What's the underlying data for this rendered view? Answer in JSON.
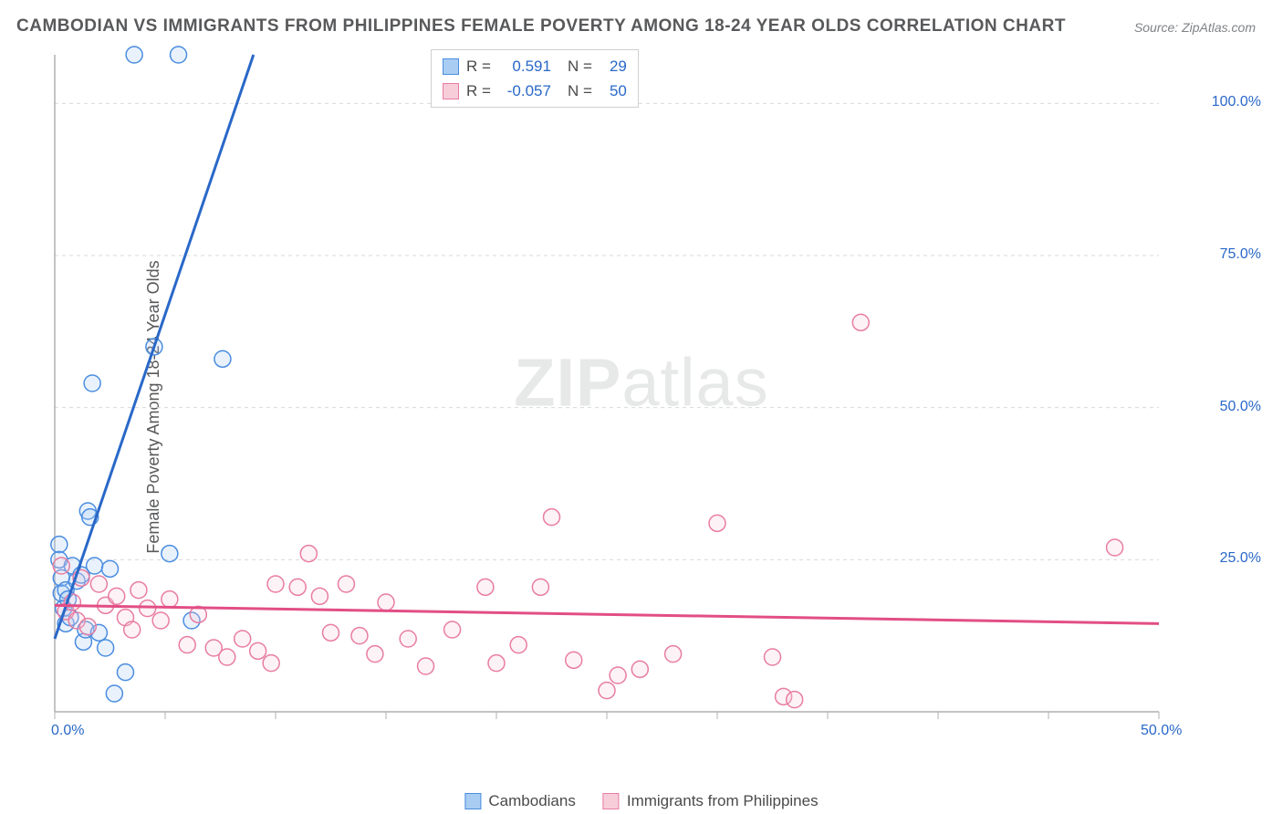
{
  "title": "CAMBODIAN VS IMMIGRANTS FROM PHILIPPINES FEMALE POVERTY AMONG 18-24 YEAR OLDS CORRELATION CHART",
  "source": "Source: ZipAtlas.com",
  "y_axis_label": "Female Poverty Among 18-24 Year Olds",
  "watermark_bold": "ZIP",
  "watermark_rest": "atlas",
  "chart": {
    "type": "scatter",
    "background_color": "#ffffff",
    "grid_color": "#d9d9d9",
    "axis_color": "#b0b0b0",
    "tick_label_color": "#2968c8",
    "xlim": [
      0,
      50
    ],
    "ylim": [
      0,
      108
    ],
    "x_ticks": [
      0,
      5,
      10,
      15,
      20,
      25,
      30,
      35,
      40,
      45,
      50
    ],
    "x_tick_labels": {
      "0": "0.0%",
      "50": "50.0%"
    },
    "y_gridlines": [
      25,
      50,
      75,
      100
    ],
    "y_tick_labels": {
      "25": "25.0%",
      "50": "50.0%",
      "75": "75.0%",
      "100": "100.0%"
    },
    "marker_radius": 9,
    "marker_stroke_width": 1.5,
    "marker_fill_opacity": 0.25,
    "trend_line_width": 3,
    "series": [
      {
        "name": "Cambodians",
        "color_stroke": "#4a8de0",
        "color_fill": "#a9cdf2",
        "trend_color": "#2968c8",
        "r": 0.591,
        "n": 29,
        "trend_p1": [
          0,
          12
        ],
        "trend_p2": [
          9,
          108
        ],
        "points": [
          [
            0.2,
            27.5
          ],
          [
            0.2,
            25
          ],
          [
            0.3,
            22
          ],
          [
            0.3,
            19.5
          ],
          [
            0.4,
            17
          ],
          [
            0.5,
            14.5
          ],
          [
            0.5,
            20
          ],
          [
            0.6,
            18.5
          ],
          [
            0.7,
            15.5
          ],
          [
            0.8,
            24
          ],
          [
            1.0,
            21.5
          ],
          [
            1.2,
            22.5
          ],
          [
            1.3,
            11.5
          ],
          [
            1.4,
            13.5
          ],
          [
            1.5,
            33
          ],
          [
            1.6,
            32
          ],
          [
            1.7,
            54
          ],
          [
            1.8,
            24
          ],
          [
            2.0,
            13
          ],
          [
            2.3,
            10.5
          ],
          [
            2.5,
            23.5
          ],
          [
            2.7,
            3
          ],
          [
            3.2,
            6.5
          ],
          [
            3.6,
            108
          ],
          [
            4.5,
            60
          ],
          [
            5.2,
            26
          ],
          [
            5.6,
            108
          ],
          [
            6.2,
            15
          ],
          [
            7.6,
            58
          ]
        ]
      },
      {
        "name": "Immigrants from Philippines",
        "color_stroke": "#e87da2",
        "color_fill": "#f7cdda",
        "trend_color": "#e24e85",
        "r": -0.057,
        "n": 50,
        "trend_p1": [
          0,
          17.5
        ],
        "trend_p2": [
          50,
          14.5
        ],
        "points": [
          [
            0.3,
            24
          ],
          [
            0.5,
            16.5
          ],
          [
            0.8,
            18
          ],
          [
            1.0,
            15
          ],
          [
            1.2,
            22
          ],
          [
            1.5,
            14
          ],
          [
            2.0,
            21
          ],
          [
            2.3,
            17.5
          ],
          [
            2.8,
            19
          ],
          [
            3.2,
            15.5
          ],
          [
            3.5,
            13.5
          ],
          [
            3.8,
            20
          ],
          [
            4.2,
            17
          ],
          [
            4.8,
            15
          ],
          [
            5.2,
            18.5
          ],
          [
            6.0,
            11
          ],
          [
            6.5,
            16
          ],
          [
            7.2,
            10.5
          ],
          [
            7.8,
            9
          ],
          [
            8.5,
            12
          ],
          [
            9.2,
            10
          ],
          [
            9.8,
            8
          ],
          [
            10.0,
            21
          ],
          [
            11.0,
            20.5
          ],
          [
            11.5,
            26
          ],
          [
            12.0,
            19
          ],
          [
            12.5,
            13
          ],
          [
            13.2,
            21
          ],
          [
            13.8,
            12.5
          ],
          [
            14.5,
            9.5
          ],
          [
            15.0,
            18
          ],
          [
            16.0,
            12
          ],
          [
            16.8,
            7.5
          ],
          [
            18.0,
            13.5
          ],
          [
            19.5,
            20.5
          ],
          [
            20.0,
            8
          ],
          [
            21.0,
            11
          ],
          [
            22.0,
            20.5
          ],
          [
            22.5,
            32
          ],
          [
            23.5,
            8.5
          ],
          [
            25.0,
            3.5
          ],
          [
            25.5,
            6
          ],
          [
            26.5,
            7
          ],
          [
            28.0,
            9.5
          ],
          [
            30.0,
            31
          ],
          [
            32.5,
            9
          ],
          [
            33.0,
            2.5
          ],
          [
            33.5,
            2
          ],
          [
            36.5,
            64
          ],
          [
            48.0,
            27
          ]
        ]
      }
    ]
  },
  "stats": {
    "r_label": "R  =",
    "n_label": "N  =",
    "rows": [
      {
        "r": "0.591",
        "n": "29"
      },
      {
        "r": "-0.057",
        "n": "50"
      }
    ]
  },
  "legend_labels": [
    "Cambodians",
    "Immigrants from Philippines"
  ]
}
